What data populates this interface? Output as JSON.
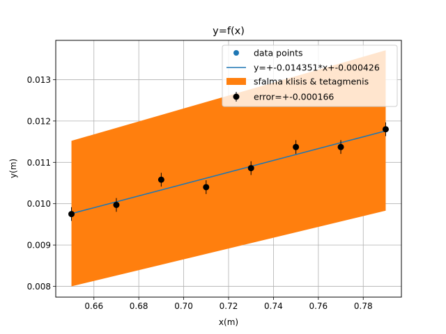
{
  "chart_data": {
    "type": "scatter",
    "title": "y=f(x)",
    "xlabel": "x(m)",
    "ylabel": "y(m)",
    "xlim": [
      0.643,
      0.797
    ],
    "ylim": [
      0.00774,
      0.01395
    ],
    "xticks": [
      0.66,
      0.68,
      0.7,
      0.72,
      0.74,
      0.76,
      0.78
    ],
    "xtick_labels": [
      "0.66",
      "0.68",
      "0.70",
      "0.72",
      "0.74",
      "0.76",
      "0.78"
    ],
    "yticks": [
      0.008,
      0.009,
      0.01,
      0.011,
      0.012,
      0.013
    ],
    "ytick_labels": [
      "0.008",
      "0.009",
      "0.010",
      "0.011",
      "0.012",
      "0.013"
    ],
    "grid": true,
    "legend_position": "top-right",
    "colors": {
      "points": "#1f77b4",
      "fit_line": "#1f77b4",
      "band": "#ff7f0e",
      "errorbar": "#000000",
      "grid": "#b0b0b0"
    },
    "series": [
      {
        "name": "data points",
        "kind": "scatter",
        "x": [
          0.65,
          0.67,
          0.69,
          0.71,
          0.73,
          0.75,
          0.77,
          0.79
        ],
        "y": [
          0.00975,
          0.00997,
          0.01058,
          0.0104,
          0.01086,
          0.01137,
          0.01137,
          0.0118
        ]
      },
      {
        "name": "y=+-0.014351*x+-0.000426",
        "kind": "line",
        "x": [
          0.65,
          0.79
        ],
        "y": [
          0.00976,
          0.01176
        ]
      },
      {
        "name": "sfalma klisis & tetagmenis",
        "kind": "band",
        "x": [
          0.65,
          0.79
        ],
        "y_low": [
          0.008,
          0.00983
        ],
        "y_high": [
          0.01152,
          0.01371
        ]
      },
      {
        "name": "error=+-0.000166",
        "kind": "errorbar",
        "x": [
          0.65,
          0.67,
          0.69,
          0.71,
          0.73,
          0.75,
          0.77,
          0.79
        ],
        "y": [
          0.00975,
          0.00997,
          0.01058,
          0.0104,
          0.01086,
          0.01137,
          0.01137,
          0.0118
        ],
        "yerr": 0.000166
      }
    ]
  }
}
